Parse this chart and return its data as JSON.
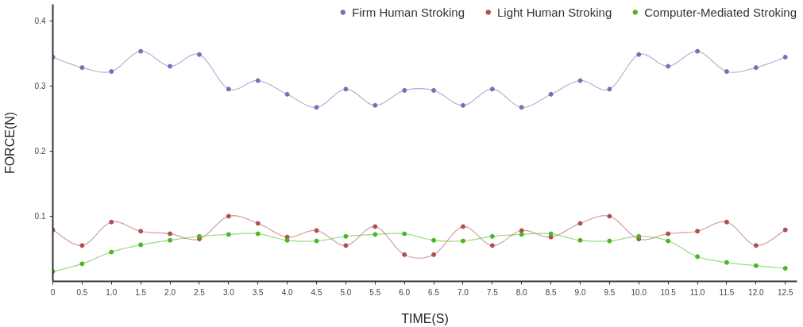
{
  "chart_data": {
    "type": "line",
    "xlabel": "TIME(S)",
    "ylabel": "FORCE(N)",
    "x": [
      0,
      0.5,
      1,
      1.5,
      2,
      2.5,
      3,
      3.5,
      4,
      4.5,
      5,
      5.5,
      6,
      6.5,
      7,
      7.5,
      8,
      8.5,
      9,
      9.5,
      10,
      10.5,
      11,
      11.5,
      12,
      12.5
    ],
    "series": [
      {
        "name": "Firm Human Stroking",
        "color": "#6f74b8",
        "values": [
          0.344,
          0.328,
          0.322,
          0.353,
          0.33,
          0.348,
          0.295,
          0.308,
          0.287,
          0.267,
          0.295,
          0.27,
          0.293,
          0.293,
          0.27,
          0.295,
          0.267,
          0.287,
          0.308,
          0.295,
          0.348,
          0.33,
          0.353,
          0.322,
          0.328,
          0.344
        ]
      },
      {
        "name": "Light Human Stroking",
        "color": "#b04f50",
        "values": [
          0.079,
          0.055,
          0.091,
          0.077,
          0.073,
          0.065,
          0.1,
          0.089,
          0.068,
          0.078,
          0.055,
          0.084,
          0.041,
          0.041,
          0.084,
          0.055,
          0.078,
          0.068,
          0.089,
          0.1,
          0.065,
          0.073,
          0.077,
          0.091,
          0.055,
          0.079
        ]
      },
      {
        "name": "Computer-Mediated Stroking",
        "color": "#4cb81f",
        "values": [
          0.015,
          0.027,
          0.045,
          0.056,
          0.063,
          0.069,
          0.072,
          0.073,
          0.063,
          0.062,
          0.069,
          0.072,
          0.073,
          0.063,
          0.062,
          0.069,
          0.072,
          0.073,
          0.063,
          0.062,
          0.069,
          0.062,
          0.038,
          0.029,
          0.024,
          0.02
        ]
      }
    ],
    "xlim": [
      0,
      12.7
    ],
    "ylim": [
      0,
      0.425
    ],
    "xticks": [
      0,
      0.5,
      {
        "value": 1,
        "label": "1.0"
      },
      1.5,
      {
        "value": 2,
        "label": "2.0"
      },
      2.5,
      {
        "value": 3,
        "label": "3.0"
      },
      3.5,
      {
        "value": 4,
        "label": "4.0"
      },
      4.5,
      {
        "value": 5,
        "label": "5.0"
      },
      5.5,
      {
        "value": 6,
        "label": "6.0"
      },
      6.5,
      {
        "value": 7,
        "label": "7.0"
      },
      7.5,
      {
        "value": 8,
        "label": "8.0"
      },
      8.5,
      {
        "value": 9,
        "label": "9.0"
      },
      9.5,
      {
        "value": 10,
        "label": "10.0"
      },
      10.5,
      {
        "value": 11,
        "label": "11.0"
      },
      11.5,
      {
        "value": 12,
        "label": "12.0"
      },
      12.5
    ],
    "yticks": [
      0.1,
      0.2,
      0.3,
      0.4
    ],
    "grid": false,
    "legend": "top right",
    "marker": "circle",
    "line_style": "solid"
  }
}
